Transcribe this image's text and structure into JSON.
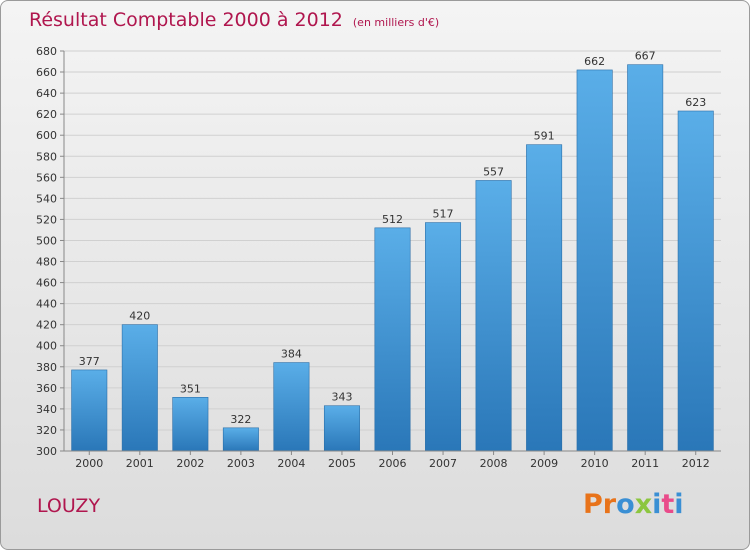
{
  "header": {
    "title": "Résultat Comptable 2000 à 2012",
    "subtitle": "(en milliers d'€)"
  },
  "footer": {
    "place": "LOUZY",
    "brand": [
      "P",
      "r",
      "o",
      "x",
      "i",
      "t",
      "i"
    ]
  },
  "colors": {
    "title": "#b0164e",
    "bar_top": "#5aaee8",
    "bar_bottom": "#2a77b8",
    "brand": [
      "#e8731a",
      "#e8731a",
      "#3a8fd4",
      "#8cc63f",
      "#3a8fd4",
      "#e94b8a",
      "#3a8fd4"
    ]
  },
  "chart_data": {
    "type": "bar",
    "title": "Résultat Comptable 2000 à 2012",
    "xlabel": "",
    "ylabel": "",
    "categories": [
      "2000",
      "2001",
      "2002",
      "2003",
      "2004",
      "2005",
      "2006",
      "2007",
      "2008",
      "2009",
      "2010",
      "2011",
      "2012"
    ],
    "values": [
      377,
      420,
      351,
      322,
      384,
      343,
      512,
      517,
      557,
      591,
      662,
      667,
      623
    ],
    "ylim": [
      300,
      680
    ],
    "yticks": [
      300,
      320,
      340,
      360,
      380,
      400,
      420,
      440,
      460,
      480,
      500,
      520,
      540,
      560,
      580,
      600,
      620,
      640,
      660,
      680
    ],
    "grid": true
  }
}
